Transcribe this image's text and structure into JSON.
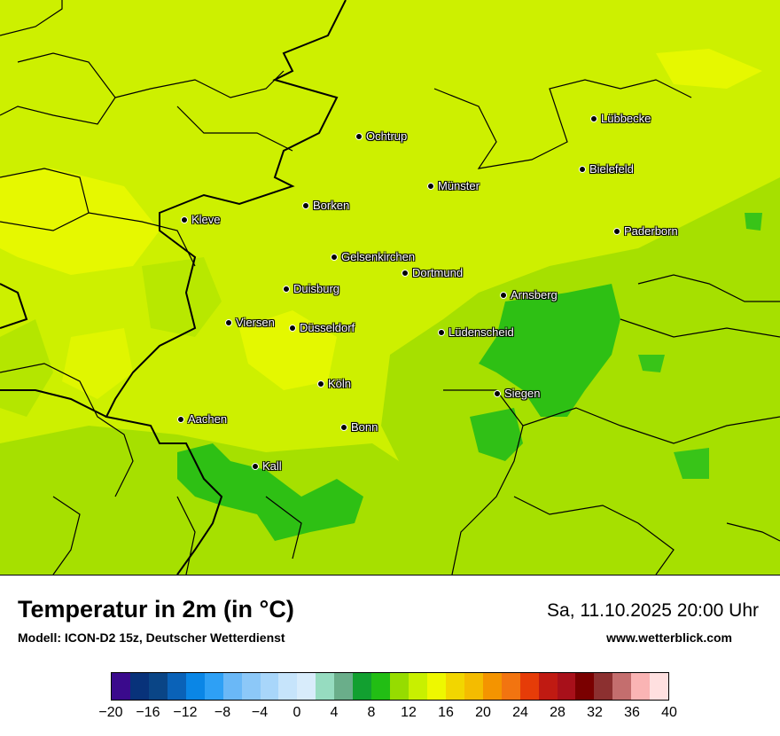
{
  "map": {
    "title": "Temperatur in 2m (in °C)",
    "model": "Modell: ICON-D2 15z, Deutscher Wetterdienst",
    "datetime": "Sa, 11.10.2025 20:00 Uhr",
    "website": "www.wetterblick.com",
    "base_color": "#cdf000",
    "cities": [
      {
        "name": "Lübbecke"
      },
      {
        "name": "Ochtrup"
      },
      {
        "name": "Bielefeld"
      },
      {
        "name": "Münster"
      },
      {
        "name": "Borken"
      },
      {
        "name": "Kleve"
      },
      {
        "name": "Paderborn"
      },
      {
        "name": "Gelsenkirchen"
      },
      {
        "name": "Dortmund"
      },
      {
        "name": "Duisburg"
      },
      {
        "name": "Arnsberg"
      },
      {
        "name": "Viersen"
      },
      {
        "name": "Düsseldorf"
      },
      {
        "name": "Lüdenscheid"
      },
      {
        "name": "Köln"
      },
      {
        "name": "Siegen"
      },
      {
        "name": "Aachen"
      },
      {
        "name": "Bonn"
      },
      {
        "name": "Kall"
      }
    ]
  },
  "legend": {
    "unit": "°C",
    "min": -20,
    "max": 40,
    "tick_labels": [
      "−20",
      "−16",
      "−12",
      "−8",
      "−4",
      "0",
      "4",
      "8",
      "12",
      "16",
      "20",
      "24",
      "28",
      "32",
      "36",
      "40"
    ],
    "colors": [
      "#3a0a8c",
      "#08327a",
      "#0a4586",
      "#0a62b8",
      "#0a86e6",
      "#2ea0f5",
      "#6ab8f7",
      "#8cc8f8",
      "#a8d6fa",
      "#c6e4fb",
      "#d8ecfb",
      "#96dcc0",
      "#6aae8a",
      "#12a030",
      "#22be14",
      "#96dc00",
      "#c8f000",
      "#eef800",
      "#f2d600",
      "#f4bc00",
      "#f49400",
      "#f27410",
      "#e63c08",
      "#c01a12",
      "#a8101a",
      "#7a0000",
      "#8c3030",
      "#c46e6e",
      "#fab4b4",
      "#ffe0e0"
    ]
  }
}
